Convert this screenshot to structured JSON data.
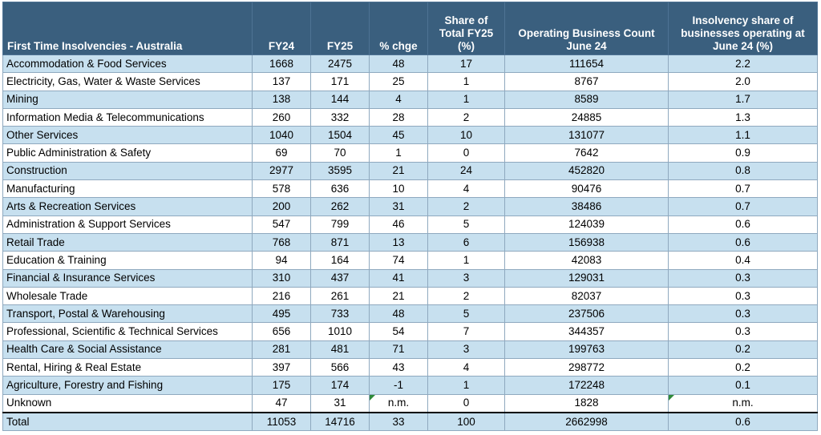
{
  "headers": [
    "First Time Insolvencies - Australia",
    "FY24",
    "FY25",
    "% chge",
    "Share of Total FY25 (%)",
    "Operating Business Count June 24",
    "Insolvency share of businesses operating at June 24 (%)"
  ],
  "rows": [
    [
      "Accommodation & Food Services",
      "1668",
      "2475",
      "48",
      "17",
      "111654",
      "2.2"
    ],
    [
      "Electricity, Gas, Water & Waste Services",
      "137",
      "171",
      "25",
      "1",
      "8767",
      "2.0"
    ],
    [
      "Mining",
      "138",
      "144",
      "4",
      "1",
      "8589",
      "1.7"
    ],
    [
      "Information Media & Telecommunications",
      "260",
      "332",
      "28",
      "2",
      "24885",
      "1.3"
    ],
    [
      "Other Services",
      "1040",
      "1504",
      "45",
      "10",
      "131077",
      "1.1"
    ],
    [
      "Public Administration & Safety",
      "69",
      "70",
      "1",
      "0",
      "7642",
      "0.9"
    ],
    [
      "Construction",
      "2977",
      "3595",
      "21",
      "24",
      "452820",
      "0.8"
    ],
    [
      "Manufacturing",
      "578",
      "636",
      "10",
      "4",
      "90476",
      "0.7"
    ],
    [
      "Arts & Recreation Services",
      "200",
      "262",
      "31",
      "2",
      "38486",
      "0.7"
    ],
    [
      "Administration & Support Services",
      "547",
      "799",
      "46",
      "5",
      "124039",
      "0.6"
    ],
    [
      "Retail Trade",
      "768",
      "871",
      "13",
      "6",
      "156938",
      "0.6"
    ],
    [
      "Education & Training",
      "94",
      "164",
      "74",
      "1",
      "42083",
      "0.4"
    ],
    [
      "Financial & Insurance Services",
      "310",
      "437",
      "41",
      "3",
      "129031",
      "0.3"
    ],
    [
      "Wholesale Trade",
      "216",
      "261",
      "21",
      "2",
      "82037",
      "0.3"
    ],
    [
      "Transport, Postal & Warehousing",
      "495",
      "733",
      "48",
      "5",
      "237506",
      "0.3"
    ],
    [
      "Professional, Scientific & Technical Services",
      "656",
      "1010",
      "54",
      "7",
      "344357",
      "0.3"
    ],
    [
      "Health Care & Social Assistance",
      "281",
      "481",
      "71",
      "3",
      "199763",
      "0.2"
    ],
    [
      "Rental, Hiring & Real Estate",
      "397",
      "566",
      "43",
      "4",
      "298772",
      "0.2"
    ],
    [
      "Agriculture, Forestry and Fishing",
      "175",
      "174",
      "-1",
      "1",
      "172248",
      "0.1"
    ],
    [
      "Unknown",
      "47",
      "31",
      "n.m.",
      "0",
      "1828",
      "n.m."
    ]
  ],
  "total": [
    "Total",
    "11053",
    "14716",
    "33",
    "100",
    "2662998",
    "0.6"
  ],
  "colors": {
    "header_bg": "#3a5f7e",
    "row_alt_bg": "#c7e0ef",
    "flag": "#2f8a3a"
  }
}
